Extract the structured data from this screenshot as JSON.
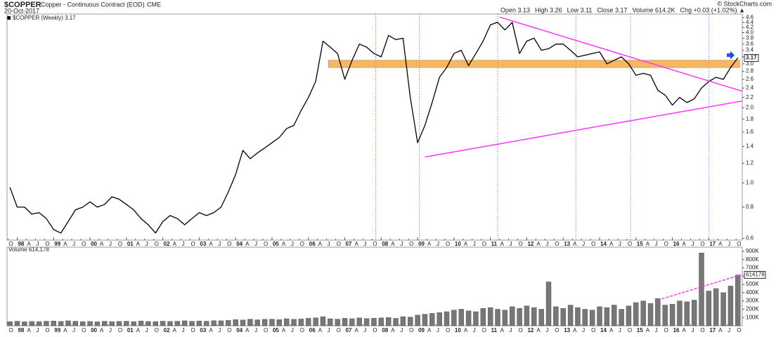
{
  "header": {
    "symbol": "$COPPER",
    "description": "Copper - Continuous Contract (EOD)",
    "exchange": "CME",
    "date": "20-Oct-2017",
    "copyright": "© StockCharts.com",
    "quote": [
      "Open 3.13",
      "High 3.26",
      "Low 3.11",
      "Close 3.17",
      "Volume 614.2K",
      "Chg +0.03 (+1.02%) ▲"
    ]
  },
  "chart_data": [
    {
      "type": "line",
      "legend": "$COPPER (Weekly) 3.17",
      "color": "#000000",
      "log_scale": true,
      "x": [
        1997.8,
        1998.0,
        1998.2,
        1998.4,
        1998.6,
        1998.8,
        1999.0,
        1999.2,
        1999.4,
        1999.6,
        1999.8,
        2000.0,
        2000.2,
        2000.4,
        2000.6,
        2000.8,
        2001.0,
        2001.2,
        2001.4,
        2001.6,
        2001.8,
        2002.0,
        2002.2,
        2002.4,
        2002.6,
        2002.8,
        2003.0,
        2003.2,
        2003.4,
        2003.6,
        2003.8,
        2004.0,
        2004.2,
        2004.4,
        2004.6,
        2004.8,
        2005.0,
        2005.2,
        2005.4,
        2005.6,
        2005.8,
        2006.0,
        2006.2,
        2006.4,
        2006.6,
        2006.8,
        2007.0,
        2007.2,
        2007.4,
        2007.6,
        2007.8,
        2008.0,
        2008.2,
        2008.4,
        2008.6,
        2008.8,
        2009.0,
        2009.2,
        2009.4,
        2009.6,
        2009.8,
        2010.0,
        2010.2,
        2010.4,
        2010.6,
        2010.8,
        2011.0,
        2011.2,
        2011.4,
        2011.6,
        2011.8,
        2012.0,
        2012.2,
        2012.4,
        2012.6,
        2012.8,
        2013.0,
        2013.2,
        2013.4,
        2013.6,
        2013.8,
        2014.0,
        2014.2,
        2014.4,
        2014.6,
        2014.8,
        2015.0,
        2015.2,
        2015.4,
        2015.6,
        2015.8,
        2016.0,
        2016.2,
        2016.4,
        2016.6,
        2016.8,
        2017.0,
        2017.2,
        2017.4,
        2017.6,
        2017.8
      ],
      "values": [
        0.96,
        0.8,
        0.8,
        0.75,
        0.76,
        0.72,
        0.65,
        0.63,
        0.7,
        0.78,
        0.8,
        0.84,
        0.8,
        0.82,
        0.88,
        0.86,
        0.82,
        0.78,
        0.72,
        0.68,
        0.63,
        0.7,
        0.74,
        0.72,
        0.68,
        0.72,
        0.76,
        0.74,
        0.76,
        0.8,
        0.92,
        1.08,
        1.35,
        1.25,
        1.32,
        1.38,
        1.45,
        1.52,
        1.65,
        1.7,
        1.95,
        2.2,
        2.55,
        3.7,
        3.5,
        3.3,
        2.6,
        3.1,
        3.6,
        3.5,
        3.3,
        3.2,
        3.9,
        3.75,
        3.8,
        2.2,
        1.45,
        1.7,
        2.1,
        2.65,
        2.9,
        3.3,
        3.4,
        2.95,
        3.3,
        3.7,
        4.3,
        4.4,
        4.1,
        4.4,
        3.3,
        3.7,
        3.8,
        3.4,
        3.45,
        3.6,
        3.6,
        3.4,
        3.2,
        3.25,
        3.3,
        3.35,
        3.0,
        3.1,
        3.2,
        3.0,
        2.7,
        2.75,
        2.7,
        2.35,
        2.25,
        2.05,
        2.2,
        2.1,
        2.17,
        2.4,
        2.55,
        2.65,
        2.6,
        2.9,
        3.17
      ],
      "xlim": [
        1997.72,
        2017.92
      ],
      "ylim": [
        0.59,
        4.75
      ],
      "yticks": [
        0.6,
        0.8,
        {
          "value": 1,
          "label": "1.0"
        },
        1.2,
        1.4,
        1.6,
        1.8,
        {
          "value": 2,
          "label": "2.0"
        },
        2.2,
        2.4,
        2.6,
        2.8,
        {
          "value": 3,
          "label": "3.0"
        },
        3.2,
        3.4,
        3.6,
        3.8,
        {
          "value": 4,
          "label": "4.0"
        },
        4.2,
        4.4,
        4.6
      ],
      "xticks": [
        {
          "value": 1997.75,
          "label": "O"
        },
        {
          "value": 1998,
          "label": "98"
        },
        {
          "value": 1998.25,
          "label": "A"
        },
        {
          "value": 1998.5,
          "label": "J"
        },
        {
          "value": 1998.75,
          "label": "O"
        },
        {
          "value": 1999,
          "label": "99"
        },
        {
          "value": 1999.25,
          "label": "A"
        },
        {
          "value": 1999.5,
          "label": "J"
        },
        {
          "value": 1999.75,
          "label": "O"
        },
        {
          "value": 2000,
          "label": "00"
        },
        {
          "value": 2000.25,
          "label": "A"
        },
        {
          "value": 2000.5,
          "label": "J"
        },
        {
          "value": 2000.75,
          "label": "O"
        },
        {
          "value": 2001,
          "label": "01"
        },
        {
          "value": 2001.25,
          "label": "A"
        },
        {
          "value": 2001.5,
          "label": "J"
        },
        {
          "value": 2001.75,
          "label": "O"
        },
        {
          "value": 2002,
          "label": "02"
        },
        {
          "value": 2002.25,
          "label": "A"
        },
        {
          "value": 2002.5,
          "label": "J"
        },
        {
          "value": 2002.75,
          "label": "O"
        },
        {
          "value": 2003,
          "label": "03"
        },
        {
          "value": 2003.25,
          "label": "A"
        },
        {
          "value": 2003.5,
          "label": "J"
        },
        {
          "value": 2003.75,
          "label": "O"
        },
        {
          "value": 2004,
          "label": "04"
        },
        {
          "value": 2004.25,
          "label": "A"
        },
        {
          "value": 2004.5,
          "label": "J"
        },
        {
          "value": 2004.75,
          "label": "O"
        },
        {
          "value": 2005,
          "label": "05"
        },
        {
          "value": 2005.25,
          "label": "A"
        },
        {
          "value": 2005.5,
          "label": "J"
        },
        {
          "value": 2005.75,
          "label": "O"
        },
        {
          "value": 2006,
          "label": "06"
        },
        {
          "value": 2006.25,
          "label": "A"
        },
        {
          "value": 2006.5,
          "label": "J"
        },
        {
          "value": 2006.75,
          "label": "O"
        },
        {
          "value": 2007,
          "label": "07"
        },
        {
          "value": 2007.25,
          "label": "A"
        },
        {
          "value": 2007.5,
          "label": "J"
        },
        {
          "value": 2007.75,
          "label": "O"
        },
        {
          "value": 2008,
          "label": "08"
        },
        {
          "value": 2008.25,
          "label": "A"
        },
        {
          "value": 2008.5,
          "label": "J"
        },
        {
          "value": 2008.75,
          "label": "O"
        },
        {
          "value": 2009,
          "label": "09"
        },
        {
          "value": 2009.25,
          "label": "A"
        },
        {
          "value": 2009.5,
          "label": "J"
        },
        {
          "value": 2009.75,
          "label": "O"
        },
        {
          "value": 2010,
          "label": "10"
        },
        {
          "value": 2010.25,
          "label": "A"
        },
        {
          "value": 2010.5,
          "label": "J"
        },
        {
          "value": 2010.75,
          "label": "O"
        },
        {
          "value": 2011,
          "label": "11"
        },
        {
          "value": 2011.25,
          "label": "A"
        },
        {
          "value": 2011.5,
          "label": "J"
        },
        {
          "value": 2011.75,
          "label": "O"
        },
        {
          "value": 2012,
          "label": "12"
        },
        {
          "value": 2012.25,
          "label": "A"
        },
        {
          "value": 2012.5,
          "label": "J"
        },
        {
          "value": 2012.75,
          "label": "O"
        },
        {
          "value": 2013,
          "label": "13"
        },
        {
          "value": 2013.25,
          "label": "A"
        },
        {
          "value": 2013.5,
          "label": "J"
        },
        {
          "value": 2013.75,
          "label": "O"
        },
        {
          "value": 2014,
          "label": "14"
        },
        {
          "value": 2014.25,
          "label": "A"
        },
        {
          "value": 2014.5,
          "label": "J"
        },
        {
          "value": 2014.75,
          "label": "O"
        },
        {
          "value": 2015,
          "label": "15"
        },
        {
          "value": 2015.25,
          "label": "A"
        },
        {
          "value": 2015.5,
          "label": "J"
        },
        {
          "value": 2015.75,
          "label": "O"
        },
        {
          "value": 2016,
          "label": "16"
        },
        {
          "value": 2016.25,
          "label": "A"
        },
        {
          "value": 2016.5,
          "label": "J"
        },
        {
          "value": 2016.75,
          "label": "O"
        },
        {
          "value": 2017,
          "label": "17"
        },
        {
          "value": 2017.25,
          "label": "A"
        },
        {
          "value": 2017.5,
          "label": "J"
        },
        {
          "value": 2017.75,
          "label": "O"
        }
      ],
      "vertical_lines": [
        2007.85,
        2009.05,
        2011.2,
        2013.35,
        2014.85,
        2017.0
      ],
      "band": {
        "from": 2.9,
        "to": 3.1,
        "x": [
          2006.55,
          2017.85
        ],
        "color": "#f0a030"
      },
      "trend_lines": [
        {
          "x": [
            2009.2,
            2017.92
          ],
          "y": [
            1.27,
            2.13
          ]
        },
        {
          "x": [
            2011.25,
            2017.92
          ],
          "y": [
            4.62,
            2.33
          ]
        }
      ],
      "trend_color": "#ff33ff",
      "arrow": {
        "x": 2017.65,
        "y": 3.25,
        "color": "#1f4fe0"
      }
    },
    {
      "type": "bar",
      "legend": "Volume 614,178",
      "color": "#777777",
      "values": [
        50000,
        55000,
        48000,
        52000,
        50000,
        55000,
        58000,
        52000,
        60000,
        55000,
        50000,
        52000,
        48000,
        55000,
        50000,
        53000,
        55000,
        50000,
        58000,
        52000,
        50000,
        56000,
        52000,
        55000,
        60000,
        54000,
        58000,
        55000,
        62000,
        60000,
        65000,
        75000,
        70000,
        80000,
        72000,
        78000,
        80000,
        75000,
        85000,
        78000,
        82000,
        90000,
        95000,
        110000,
        85000,
        80000,
        90000,
        85000,
        95000,
        88000,
        92000,
        95000,
        100000,
        90000,
        110000,
        105000,
        130000,
        140000,
        150000,
        160000,
        170000,
        190000,
        200000,
        180000,
        170000,
        210000,
        220000,
        200000,
        190000,
        230000,
        210000,
        240000,
        220000,
        200000,
        530000,
        230000,
        210000,
        250000,
        220000,
        200000,
        190000,
        230000,
        220000,
        250000,
        200000,
        240000,
        280000,
        300000,
        270000,
        330000,
        250000,
        260000,
        300000,
        290000,
        310000,
        880000,
        420000,
        450000,
        400000,
        480000,
        614178
      ],
      "ylim": [
        0,
        950000
      ],
      "yticks": [
        {
          "value": 100000,
          "label": "100K"
        },
        {
          "value": 200000,
          "label": "200K"
        },
        {
          "value": 300000,
          "label": "300K"
        },
        {
          "value": 400000,
          "label": "400K"
        },
        {
          "value": 500000,
          "label": "500K"
        },
        {
          "value": 600000,
          "label": "600K"
        },
        {
          "value": 700000,
          "label": "700K"
        },
        {
          "value": 800000,
          "label": "800K"
        },
        {
          "value": 900000,
          "label": "900K"
        }
      ],
      "trend_lines": [
        {
          "x": [
            2015.6,
            2017.92
          ],
          "y": [
            310000,
            620000
          ]
        }
      ],
      "trend_color": "#ff33ff"
    }
  ]
}
